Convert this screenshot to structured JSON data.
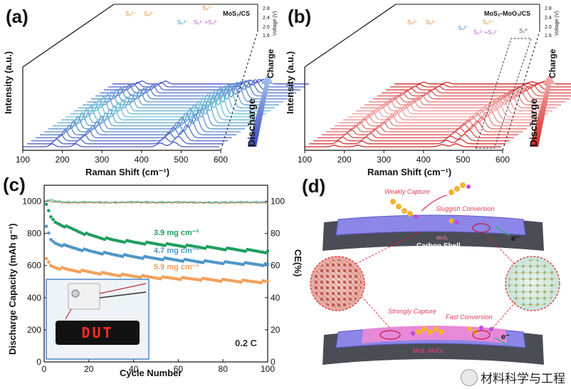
{
  "panels": {
    "a": {
      "letter": "(a)",
      "material": "MoS₂/CS",
      "ylabel": "Intensity (a.u.)",
      "xlabel": "Raman Shift (cm⁻¹)",
      "xticks": [
        "100",
        "200",
        "300",
        "400",
        "500",
        "600"
      ],
      "voltage_label": "Voltage (V)",
      "voltage_ticks": [
        "2.8",
        "2.4",
        "2.0",
        "1.6"
      ],
      "arrow_top": "Charge",
      "arrow_bottom": "Discharge",
      "peak_labels": [
        "S₈²⁻",
        "S₈²⁻",
        "S₈²⁻",
        "S₆²⁻",
        "S₅²⁻+S₄²⁻"
      ]
    },
    "b": {
      "letter": "(b)",
      "material": "MoS₂-MoO₃/CS",
      "ylabel": "Intensity (a.u.)",
      "xlabel": "Raman Shift (cm⁻¹)",
      "xticks": [
        "100",
        "200",
        "300",
        "400",
        "500",
        "600"
      ],
      "voltage_label": "Voltage (V)",
      "voltage_ticks": [
        "2.8",
        "2.4",
        "2.0",
        "1.6"
      ],
      "arrow_top": "Charge",
      "arrow_bottom": "Discharge",
      "peak_labels": [
        "S₈²⁻",
        "S₈²⁻",
        "S₈²⁻",
        "S₆²⁻",
        "S₅²⁻+S₄²⁻",
        "S₃*"
      ]
    },
    "c": {
      "letter": "(c)",
      "ylabel_left": "Discharge Capacity (mAh g⁻¹)",
      "ylabel_right": "CE(%)",
      "xlabel": "Cycle Number",
      "xticks": [
        "0",
        "20",
        "40",
        "60",
        "80",
        "100"
      ],
      "yticks_left": [
        "0",
        "200",
        "400",
        "600",
        "800",
        "1000"
      ],
      "yticks_right": [
        "0",
        "20",
        "40",
        "60",
        "80",
        "100"
      ],
      "rate": "0.2 C",
      "inset_display": "DUT"
    },
    "d": {
      "letter": "(d)",
      "top_weak": "Weakly Capture",
      "top_sluggish": "Sluggish Conversion",
      "top_material": "MoS₂",
      "top_shell": "Carbon Shell",
      "bottom_strong": "Strongly Capture",
      "bottom_fast": "Fast Conversion",
      "bottom_material": "MoS₂-MoO₃",
      "bottom_shell": "Carbon Shell",
      "electron": "e⁻"
    }
  },
  "chart_data": [
    {
      "panel": "c",
      "type": "scatter",
      "title": "",
      "xlabel": "Cycle Number",
      "ylabel": "Discharge Capacity (mAh g⁻¹)",
      "y2label": "CE(%)",
      "xlim": [
        0,
        100
      ],
      "ylim": [
        0,
        1100
      ],
      "y2lim": [
        0,
        110
      ],
      "series": [
        {
          "name": "3.9 mg cm⁻²",
          "color": "#1f9e5f",
          "x": [
            1,
            3,
            5,
            10,
            20,
            30,
            40,
            50,
            60,
            70,
            80,
            90,
            100
          ],
          "y": [
            975,
            900,
            870,
            840,
            790,
            760,
            745,
            735,
            725,
            715,
            705,
            695,
            685
          ]
        },
        {
          "name": "4.7 mg cm⁻²",
          "color": "#4f97c6",
          "x": [
            1,
            3,
            5,
            10,
            20,
            30,
            40,
            50,
            60,
            70,
            80,
            90,
            100
          ],
          "y": [
            840,
            760,
            740,
            720,
            690,
            670,
            655,
            645,
            635,
            625,
            618,
            612,
            605
          ]
        },
        {
          "name": "5.9 mg cm⁻²",
          "color": "#f2a05a",
          "x": [
            1,
            3,
            5,
            10,
            20,
            30,
            40,
            50,
            60,
            70,
            80,
            90,
            100
          ],
          "y": [
            640,
            600,
            590,
            575,
            560,
            545,
            535,
            525,
            520,
            515,
            508,
            502,
            498
          ]
        },
        {
          "name": "CE 3.9",
          "color": "#1f9e5f",
          "axis": "right",
          "x": [
            1,
            10,
            20,
            30,
            40,
            50,
            60,
            70,
            80,
            90,
            100
          ],
          "y": [
            101,
            99.5,
            99.6,
            99.4,
            99.7,
            99.5,
            99.6,
            99.4,
            99.5,
            99.6,
            99.5
          ]
        },
        {
          "name": "CE 4.7",
          "color": "#4f97c6",
          "axis": "right",
          "x": [
            1,
            10,
            20,
            30,
            40,
            50,
            60,
            70,
            80,
            90,
            100
          ],
          "y": [
            100,
            99.2,
            99.3,
            99.1,
            99.4,
            99.2,
            99.3,
            99.2,
            99.1,
            99.3,
            99.2
          ]
        },
        {
          "name": "CE 5.9",
          "color": "#f2a05a",
          "axis": "right",
          "x": [
            1,
            10,
            20,
            30,
            40,
            50,
            60,
            70,
            80,
            90,
            100
          ],
          "y": [
            100,
            98.8,
            99.0,
            98.9,
            99.1,
            98.8,
            99.0,
            98.9,
            98.8,
            99.0,
            98.9
          ]
        }
      ]
    }
  ],
  "watermark": "材料科学与工程"
}
